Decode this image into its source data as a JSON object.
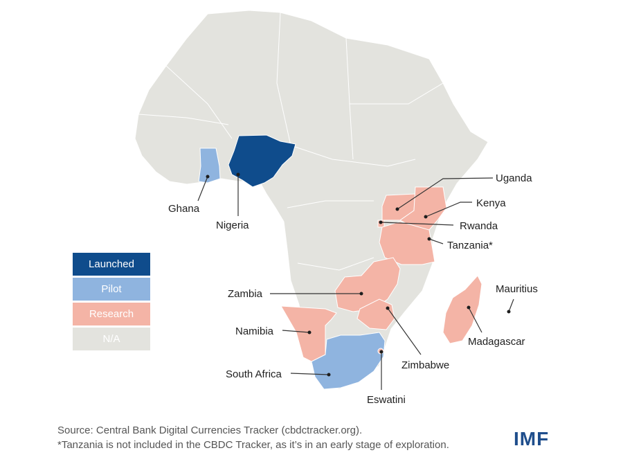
{
  "legend": {
    "items": [
      {
        "label": "Launched",
        "color": "#0f4c8c"
      },
      {
        "label": "Pilot",
        "color": "#8fb4df"
      },
      {
        "label": "Research",
        "color": "#f4b4a6"
      },
      {
        "label": "N/A",
        "color": "#e3e3de"
      }
    ]
  },
  "countries": {
    "nigeria": "Nigeria",
    "ghana": "Ghana",
    "uganda": "Uganda",
    "kenya": "Kenya",
    "rwanda": "Rwanda",
    "tanzania": "Tanzania*",
    "zambia": "Zambia",
    "namibia": "Namibia",
    "south_africa": "South Africa",
    "eswatini": "Eswatini",
    "zimbabwe": "Zimbabwe",
    "madagascar": "Madagascar",
    "mauritius": "Mauritius"
  },
  "footer": {
    "source": "Source: Central Bank Digital Currencies Tracker (cbdctracker.org).",
    "note": "*Tanzania is not included in the CBDC Tracker, as it’s in an early stage of exploration."
  },
  "logo": "IMF",
  "colors": {
    "launched": "#0f4c8c",
    "pilot": "#8fb4df",
    "research": "#f4b4a6",
    "na": "#e3e3de",
    "border": "#ffffff",
    "leader": "#333333"
  }
}
